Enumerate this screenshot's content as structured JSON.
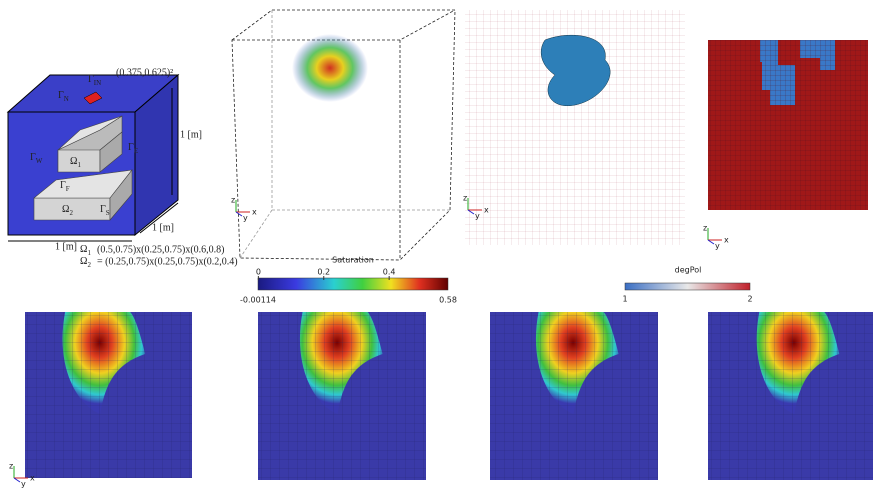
{
  "domain_figure": {
    "boundary_labels": [
      {
        "symbol": "Γ",
        "sub": "IN"
      },
      {
        "symbol": "Γ",
        "sub": "N"
      },
      {
        "symbol": "Γ",
        "sub": "W"
      },
      {
        "symbol": "Γ",
        "sub": "F"
      },
      {
        "symbol": "Γ",
        "sub": "E"
      },
      {
        "symbol": "Γ",
        "sub": "S"
      }
    ],
    "inlet_coords": "(0.375,0.625)²",
    "dimension_labels": [
      "1 [m]",
      "1 [m]",
      "1 [m]"
    ],
    "subdomains": [
      {
        "symbol": "Ω",
        "sub": "1",
        "definition": "(0.5,0.75)x(0.25,0.75)x(0.6,0.8)"
      },
      {
        "symbol": "Ω",
        "sub": "2",
        "definition": "= (0.25,0.75)x(0.25,0.75)x(0.2,0.4)"
      }
    ]
  },
  "saturation_colorbar": {
    "title": "Saturation",
    "range": [
      -0.00114,
      0.58
    ],
    "ticks": [
      0,
      0.2,
      0.4
    ]
  },
  "degpol_colorbar": {
    "title": "degPol",
    "range": [
      1,
      2
    ]
  },
  "axis_labels": [
    "z",
    "y",
    "x"
  ]
}
